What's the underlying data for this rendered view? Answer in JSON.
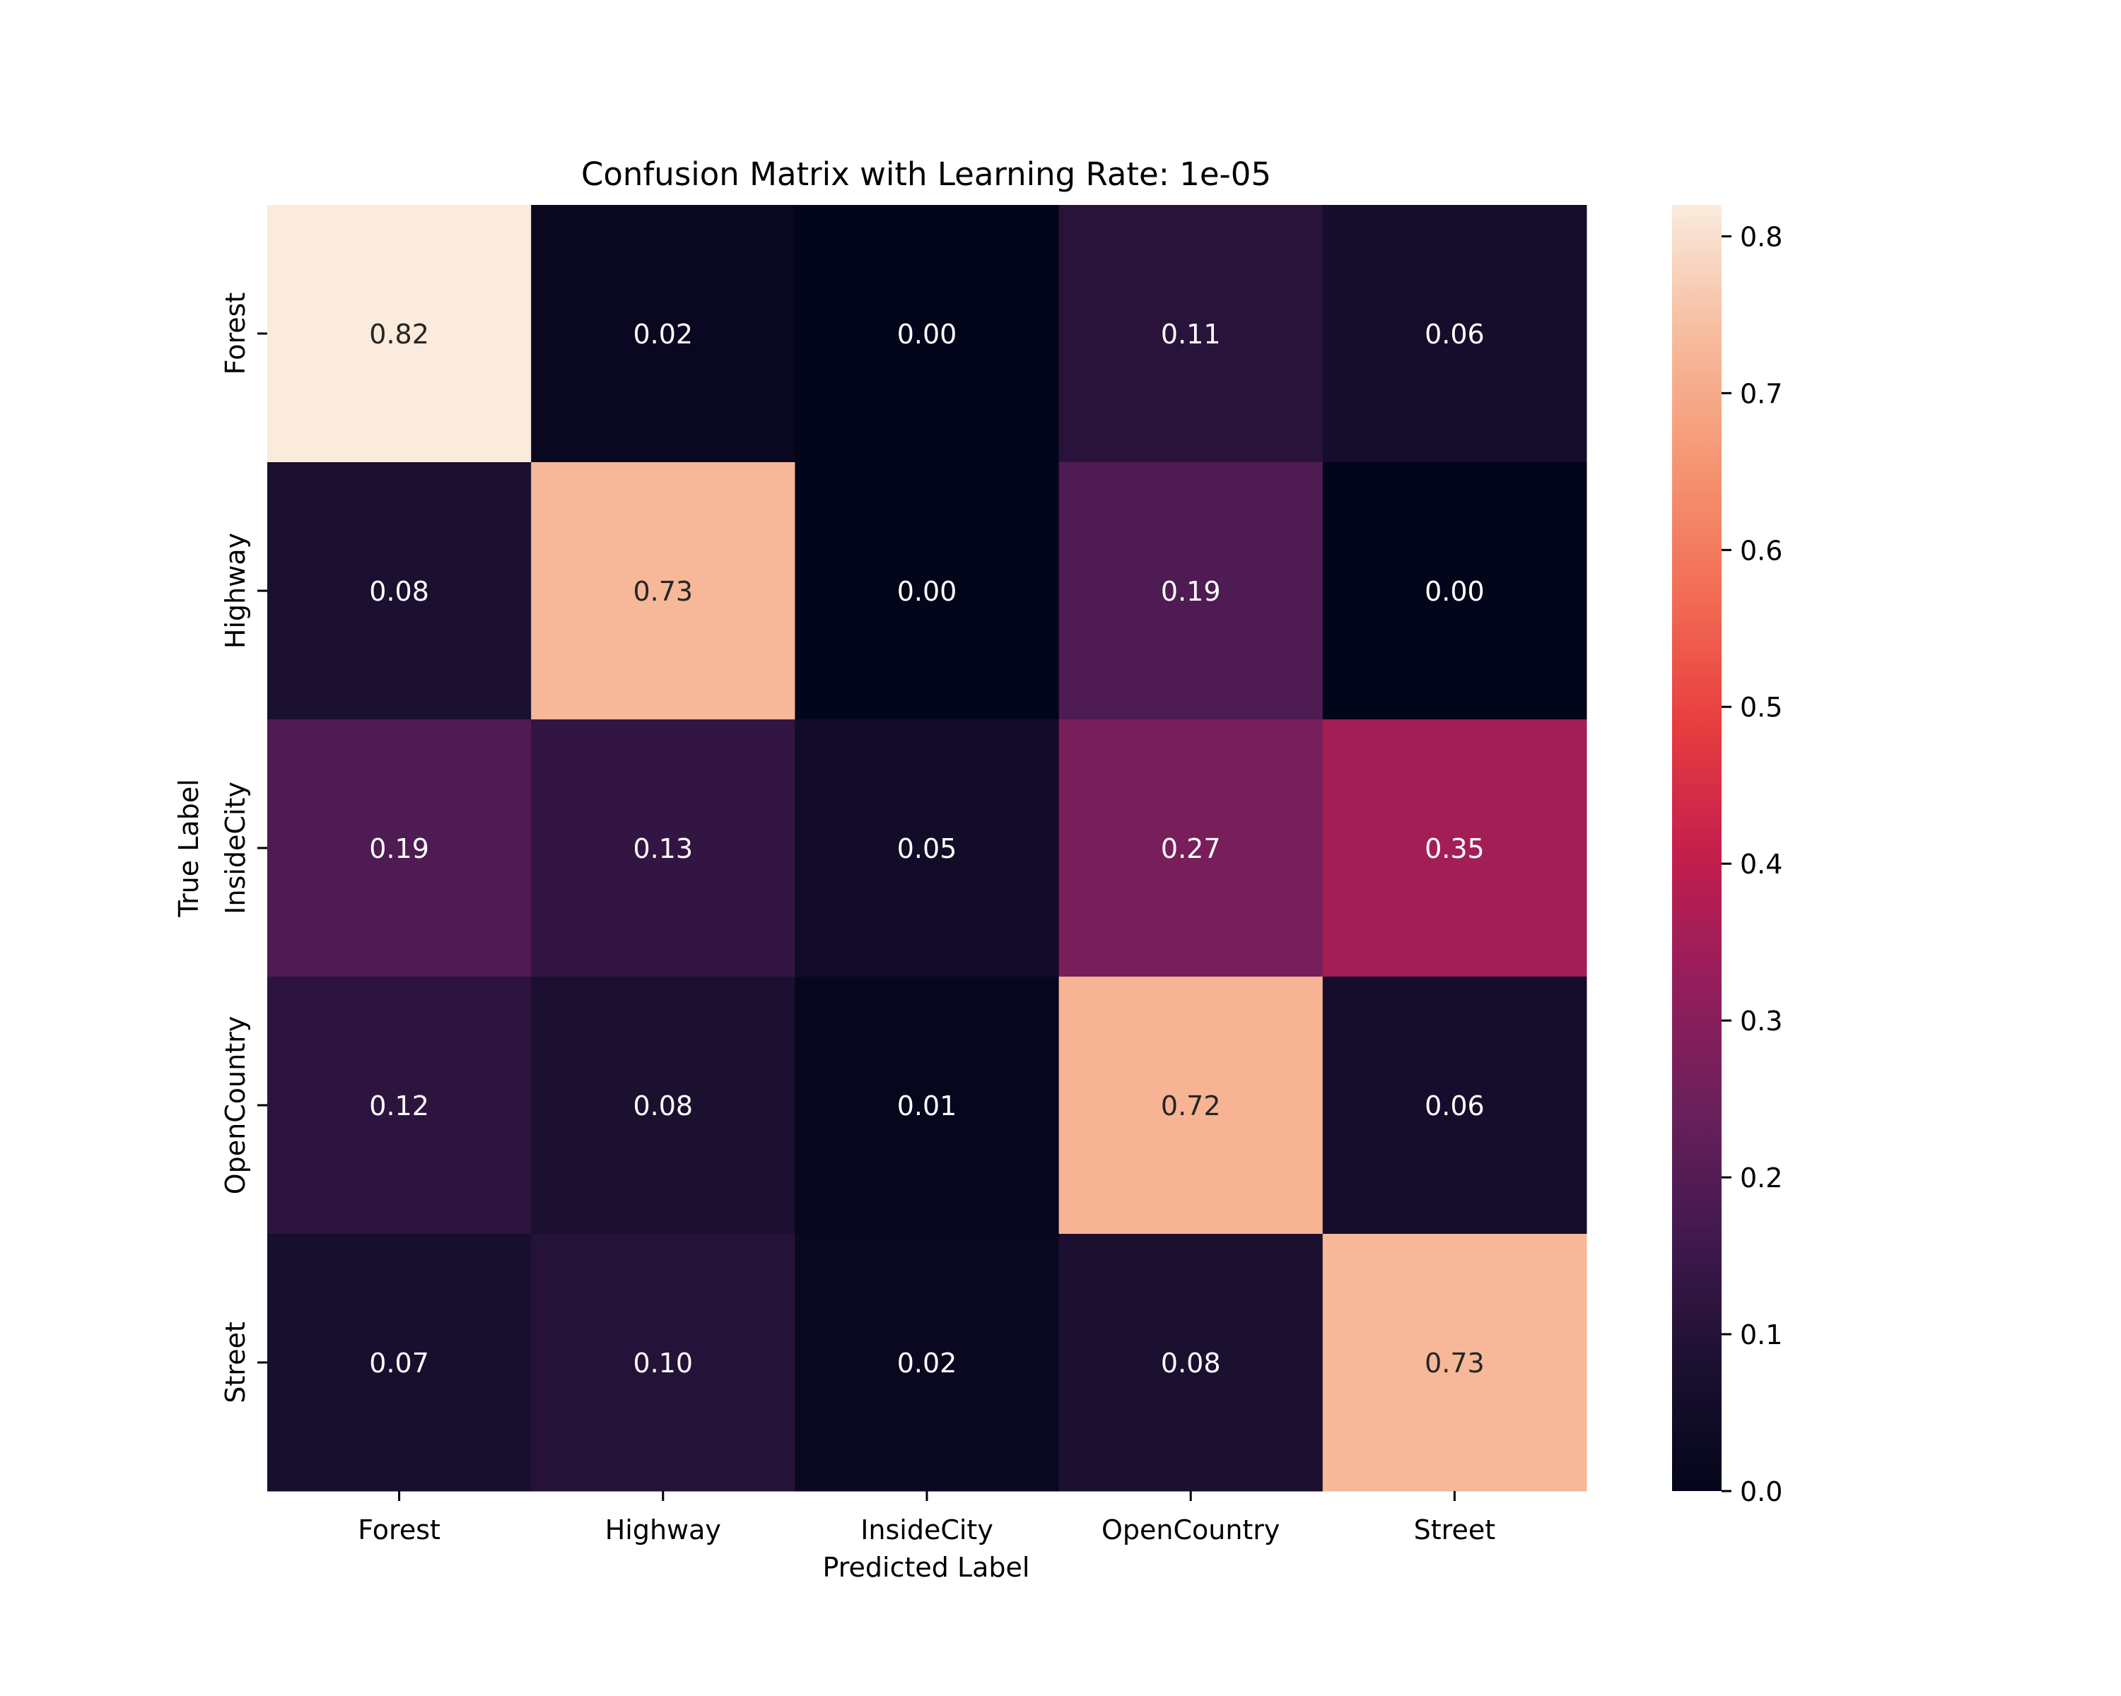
{
  "chart_data": {
    "type": "heatmap",
    "title": "Confusion Matrix with Learning Rate: 1e-05",
    "xlabel": "Predicted Label",
    "ylabel": "True Label",
    "x_categories": [
      "Forest",
      "Highway",
      "InsideCity",
      "OpenCountry",
      "Street"
    ],
    "y_categories": [
      "Forest",
      "Highway",
      "InsideCity",
      "OpenCountry",
      "Street"
    ],
    "values": [
      [
        0.82,
        0.02,
        0.0,
        0.11,
        0.06
      ],
      [
        0.08,
        0.73,
        0.0,
        0.19,
        0.0
      ],
      [
        0.19,
        0.13,
        0.05,
        0.27,
        0.35
      ],
      [
        0.12,
        0.08,
        0.01,
        0.72,
        0.06
      ],
      [
        0.07,
        0.1,
        0.02,
        0.08,
        0.73
      ]
    ],
    "value_format": "0.00",
    "colormap": "rocket",
    "vmin": 0.0,
    "vmax": 0.82,
    "colorbar_ticks": [
      "0.0",
      "0.1",
      "0.2",
      "0.3",
      "0.4",
      "0.5",
      "0.6",
      "0.7",
      "0.8"
    ],
    "colorbar_tick_values": [
      0.0,
      0.1,
      0.2,
      0.3,
      0.4,
      0.5,
      0.6,
      0.7,
      0.8
    ],
    "grid": false
  }
}
